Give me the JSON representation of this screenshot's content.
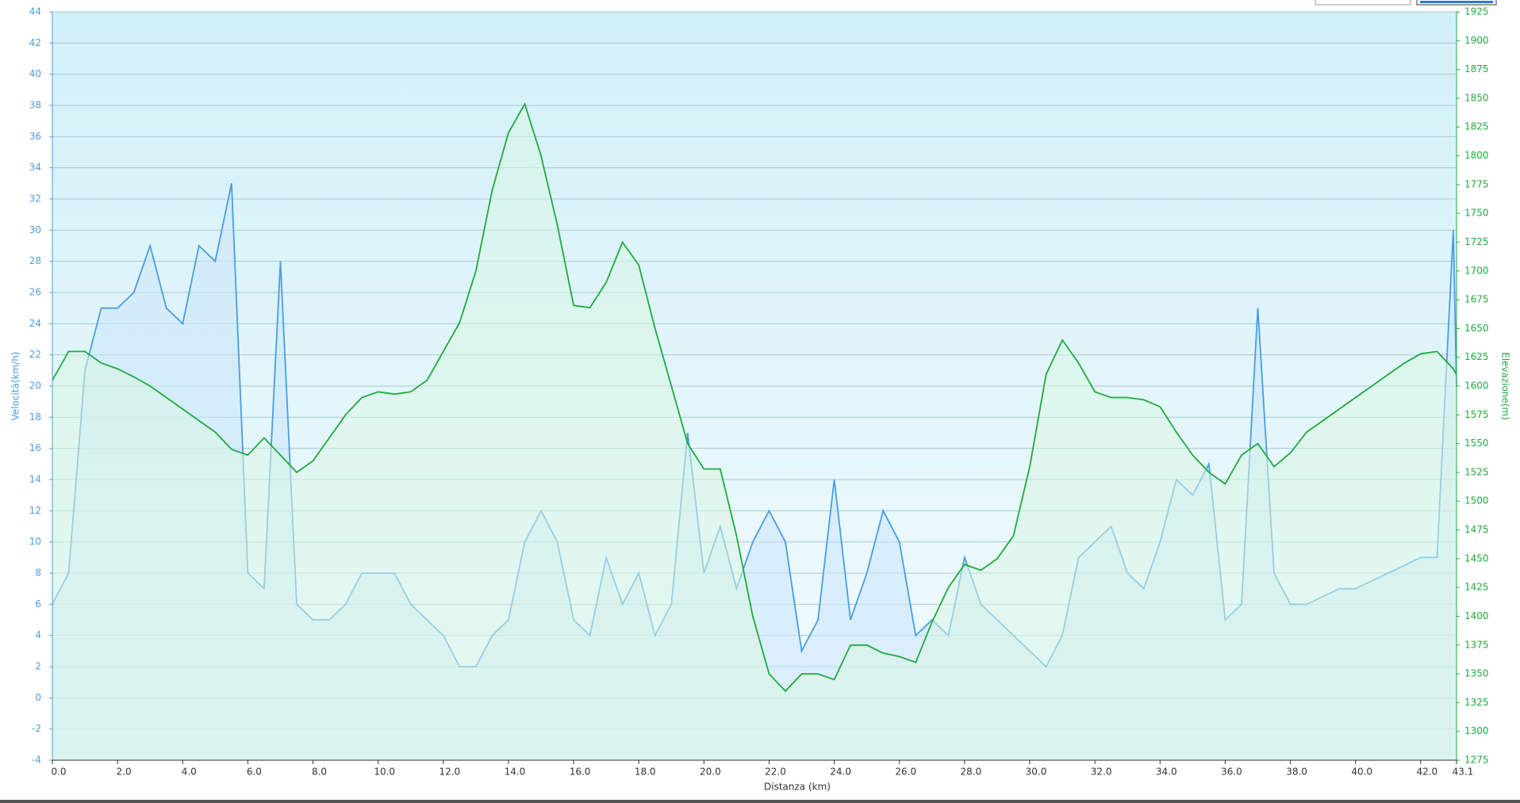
{
  "chart_data": {
    "type": "line",
    "xlabel": "Distanza  (km)",
    "ylabel": "Velocità(km/h)",
    "y2label": "Elevazione(m)",
    "xlim": [
      0,
      43.1
    ],
    "xticks": [
      {
        "value": 0,
        "label": "0.0"
      },
      {
        "value": 2,
        "label": "2.0"
      },
      {
        "value": 4,
        "label": "4.0"
      },
      {
        "value": 6,
        "label": "6.0"
      },
      {
        "value": 8,
        "label": "8.0"
      },
      {
        "value": 10,
        "label": "10.0"
      },
      {
        "value": 12,
        "label": "12.0"
      },
      {
        "value": 14,
        "label": "14.0"
      },
      {
        "value": 16,
        "label": "16.0"
      },
      {
        "value": 18,
        "label": "18.0"
      },
      {
        "value": 20,
        "label": "20.0"
      },
      {
        "value": 22,
        "label": "22.0"
      },
      {
        "value": 24,
        "label": "24.0"
      },
      {
        "value": 26,
        "label": "26.0"
      },
      {
        "value": 28,
        "label": "28.0"
      },
      {
        "value": 30,
        "label": "30.0"
      },
      {
        "value": 32,
        "label": "32.0"
      },
      {
        "value": 34,
        "label": "34.0"
      },
      {
        "value": 36,
        "label": "36.0"
      },
      {
        "value": 38,
        "label": "38.0"
      },
      {
        "value": 40,
        "label": "40.0"
      },
      {
        "value": 42,
        "label": "42.0"
      },
      43.1
    ],
    "ylim": [
      -4,
      44
    ],
    "yticks": [
      -4,
      -2,
      0,
      2,
      4,
      6,
      8,
      10,
      12,
      14,
      16,
      18,
      20,
      22,
      24,
      26,
      28,
      30,
      32,
      34,
      36,
      38,
      40,
      42,
      44
    ],
    "y2lim": [
      1275,
      1925
    ],
    "y2ticks": [
      1275,
      1300,
      1325,
      1350,
      1375,
      1400,
      1425,
      1450,
      1475,
      1500,
      1525,
      1550,
      1575,
      1600,
      1625,
      1650,
      1675,
      1700,
      1725,
      1750,
      1775,
      1800,
      1825,
      1850,
      1875,
      1900,
      1925
    ],
    "grid": true,
    "x": [
      0,
      0.5,
      1,
      1.5,
      2,
      2.5,
      3,
      3.5,
      4,
      4.5,
      5,
      5.5,
      6,
      6.5,
      7,
      7.5,
      8,
      8.5,
      9,
      9.5,
      10,
      10.5,
      11,
      11.5,
      12,
      12.5,
      13,
      13.5,
      14,
      14.5,
      15,
      15.5,
      16,
      16.5,
      17,
      17.5,
      18,
      18.5,
      19,
      19.5,
      20,
      20.5,
      21,
      21.5,
      22,
      22.5,
      23,
      23.5,
      24,
      24.5,
      25,
      25.5,
      26,
      26.5,
      27,
      27.5,
      28,
      28.5,
      29,
      29.5,
      30,
      30.5,
      31,
      31.5,
      32,
      32.5,
      33,
      33.5,
      34,
      34.5,
      35,
      35.5,
      36,
      36.5,
      37,
      37.5,
      38,
      38.5,
      39,
      39.5,
      40,
      40.5,
      41,
      41.5,
      42,
      42.5,
      43,
      43.1
    ],
    "series": [
      {
        "color": "#4a9de3",
        "fill": "#cbe6fa",
        "values": [
          6,
          8,
          21,
          25,
          25,
          26,
          29,
          25,
          24,
          29,
          28,
          33,
          8,
          7,
          28,
          6,
          5,
          5,
          6,
          8,
          8,
          8,
          6,
          5,
          4,
          2,
          2,
          4,
          5,
          10,
          12,
          10,
          5,
          4,
          9,
          6,
          8,
          4,
          6,
          17,
          8,
          11,
          7,
          10,
          12,
          10,
          3,
          5,
          14,
          5,
          8,
          12,
          10,
          4,
          5,
          4,
          9,
          6,
          5,
          4,
          3,
          2,
          4,
          9,
          10,
          11,
          8,
          7,
          10,
          14,
          13,
          15,
          5,
          6,
          25,
          8,
          6,
          6,
          6.5,
          7,
          7,
          7.5,
          8,
          8.5,
          9,
          9,
          30,
          20
        ]
      },
      {
        "color": "#1faa3f",
        "fill": "#d8f5e4",
        "axis": "y2",
        "values": [
          1605,
          1630,
          1630,
          1620,
          1615,
          1608,
          1600,
          1590,
          1580,
          1570,
          1560,
          1545,
          1540,
          1555,
          1540,
          1525,
          1535,
          1555,
          1575,
          1590,
          1595,
          1593,
          1595,
          1605,
          1630,
          1655,
          1700,
          1770,
          1820,
          1845,
          1800,
          1740,
          1670,
          1668,
          1690,
          1725,
          1705,
          1650,
          1600,
          1550,
          1528,
          1528,
          1470,
          1400,
          1350,
          1335,
          1350,
          1350,
          1345,
          1375,
          1375,
          1368,
          1365,
          1360,
          1395,
          1425,
          1445,
          1440,
          1450,
          1470,
          1530,
          1610,
          1640,
          1620,
          1595,
          1590,
          1590,
          1588,
          1582,
          1560,
          1540,
          1525,
          1515,
          1540,
          1550,
          1530,
          1542,
          1560,
          1570,
          1580,
          1590,
          1600,
          1610,
          1620,
          1628,
          1630,
          1615,
          1610
        ]
      }
    ]
  }
}
